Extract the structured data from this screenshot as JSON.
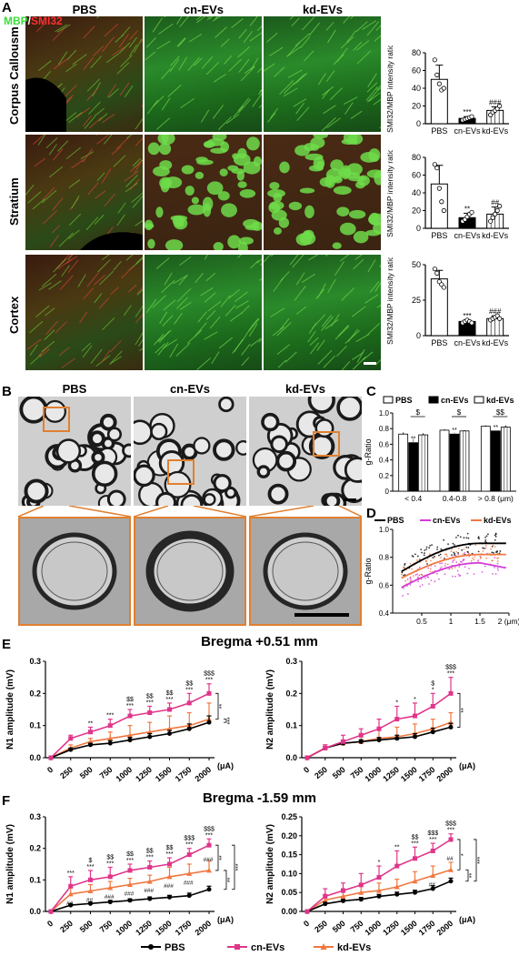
{
  "panels": {
    "A": "A",
    "B": "B",
    "C": "C",
    "D": "D",
    "E": "E",
    "F": "F"
  },
  "groups": {
    "pbs": "PBS",
    "cn": "cn-EVs",
    "kd": "kd-EVs"
  },
  "fluor_legend": {
    "mbp": "MBP",
    "sep": "/",
    "smi": "SMI32"
  },
  "regions": [
    "Corpus Callousm",
    "Stratium",
    "Cortex"
  ],
  "colors": {
    "pbs": "#000000",
    "cn": "#e0358a",
    "kd": "#f07840",
    "kd_line_c": "#f0a04a",
    "cn_d": "#d43cd8",
    "green": "#3cbf3c",
    "red": "#d02020"
  },
  "chart_data": [
    {
      "type": "bar",
      "id": "A1",
      "categories": [
        "PBS",
        "cn-EVs",
        "kd-EVs"
      ],
      "values": [
        50,
        6,
        15
      ],
      "errors": [
        16,
        2,
        4
      ],
      "points": [
        [
          72,
          55,
          45,
          38,
          40
        ],
        [
          4,
          5,
          6,
          7,
          8
        ],
        [
          10,
          13,
          15,
          17,
          20
        ]
      ],
      "ylabel": "SMI32/MBP intensity ratio",
      "ylim": [
        0,
        80
      ],
      "yticks": [
        0,
        20,
        40,
        60,
        80
      ],
      "sig": [
        [
          "",
          ""
        ],
        [
          "***",
          ""
        ],
        [
          "",
          "###"
        ]
      ]
    },
    {
      "type": "bar",
      "id": "A2",
      "categories": [
        "PBS",
        "cn-EVs",
        "kd-EVs"
      ],
      "values": [
        50,
        12,
        16
      ],
      "errors": [
        21,
        5,
        8
      ],
      "points": [
        [
          72,
          68,
          45,
          30,
          20
        ],
        [
          8,
          10,
          13,
          16,
          18
        ],
        [
          8,
          12,
          16,
          20,
          25
        ]
      ],
      "ylabel": "SMI32/MBP intensity ratio",
      "ylim": [
        0,
        80
      ],
      "yticks": [
        0,
        20,
        40,
        60,
        80
      ],
      "sig": [
        [
          "",
          ""
        ],
        [
          "**",
          ""
        ],
        [
          "",
          "##"
        ]
      ]
    },
    {
      "type": "bar",
      "id": "A3",
      "categories": [
        "PBS",
        "cn-EVs",
        "kd-EVs"
      ],
      "values": [
        40,
        10,
        12
      ],
      "errors": [
        6,
        1,
        2
      ],
      "points": [
        [
          47,
          44,
          38,
          36,
          34
        ],
        [
          9,
          10,
          11,
          10,
          9
        ],
        [
          11,
          12,
          13,
          14,
          12
        ]
      ],
      "ylabel": "SMI32/MBP intensity ratio",
      "ylim": [
        0,
        50
      ],
      "yticks": [
        0,
        25,
        50
      ],
      "sig": [
        [
          "",
          ""
        ],
        [
          "***",
          ""
        ],
        [
          "",
          "###"
        ]
      ]
    },
    {
      "type": "bar",
      "id": "C",
      "categories": [
        "< 0.4",
        "0.4-0.8",
        "> 0.8 (μm)"
      ],
      "series": [
        {
          "name": "PBS",
          "values": [
            0.73,
            0.78,
            0.83
          ]
        },
        {
          "name": "cn-EVs",
          "values": [
            0.62,
            0.73,
            0.77
          ]
        },
        {
          "name": "kd-EVs",
          "values": [
            0.72,
            0.77,
            0.82
          ]
        }
      ],
      "errors": [
        [
          0.02,
          0.05,
          0.02
        ],
        [
          0.01,
          0.02,
          0.01
        ],
        [
          0.01,
          0.01,
          0.02
        ]
      ],
      "ylabel": "g-Ratio",
      "ylim": [
        0,
        1.0
      ],
      "yticks": [
        0,
        0.2,
        0.4,
        0.6,
        0.8,
        1.0
      ],
      "sig_cn": [
        "**",
        "**",
        "**"
      ],
      "sig_top": [
        "$",
        "$",
        "$$"
      ]
    },
    {
      "type": "scatter",
      "id": "D",
      "series": [
        {
          "name": "PBS"
        },
        {
          "name": "cn-EVs"
        },
        {
          "name": "kd-EVs"
        }
      ],
      "ylabel": "g-Ratio",
      "xlim": [
        0,
        2
      ],
      "ylim": [
        0.4,
        1.0
      ],
      "xticks": [
        0.5,
        1,
        1.5,
        2
      ],
      "xtick_labels": [
        "0.5",
        "1",
        "1.5",
        "2 (μm)"
      ],
      "yticks": [
        0.4,
        0.6,
        0.8,
        1.0
      ],
      "fits": {
        "PBS": [
          0.66,
          0.9
        ],
        "cn-EVs": [
          0.55,
          0.76
        ],
        "kd-EVs": [
          0.62,
          0.82
        ]
      }
    },
    {
      "type": "line",
      "id": "E1",
      "title": "Bregma +0.51 mm",
      "x": [
        "0",
        "250",
        "500",
        "750",
        "1000",
        "1250",
        "1500",
        "1750",
        "2000"
      ],
      "x_unit": "(μA)",
      "series": [
        {
          "name": "PBS",
          "values": [
            0,
            0.025,
            0.04,
            0.045,
            0.055,
            0.065,
            0.075,
            0.09,
            0.11
          ],
          "errors": [
            0,
            0.005,
            0.005,
            0.008,
            0.008,
            0.01,
            0.01,
            0.015,
            0.02
          ]
        },
        {
          "name": "cn-EVs",
          "values": [
            0,
            0.06,
            0.08,
            0.1,
            0.13,
            0.14,
            0.15,
            0.17,
            0.2
          ],
          "errors": [
            0,
            0.01,
            0.015,
            0.02,
            0.02,
            0.02,
            0.02,
            0.03,
            0.03
          ]
        },
        {
          "name": "kd-EVs",
          "values": [
            0,
            0.03,
            0.05,
            0.06,
            0.07,
            0.08,
            0.09,
            0.1,
            0.12
          ],
          "errors": [
            0,
            0.01,
            0.01,
            0.02,
            0.03,
            0.03,
            0.04,
            0.04,
            0.05
          ]
        }
      ],
      "sig": [
        [
          "",
          ""
        ],
        [
          "",
          ""
        ],
        [
          "",
          "**"
        ],
        [
          "",
          "***"
        ],
        [
          "$$",
          "***"
        ],
        [
          "$$",
          "***"
        ],
        [
          "$$",
          "***"
        ],
        [
          "$$",
          "***"
        ],
        [
          "$$$",
          "***"
        ]
      ],
      "bracket": [
        "**",
        "***"
      ],
      "ylabel": "N1 amplitude (mV)",
      "ylim": [
        0,
        0.3
      ],
      "yticks": [
        0,
        0.1,
        0.2,
        0.3
      ]
    },
    {
      "type": "line",
      "id": "E2",
      "x": [
        "0",
        "250",
        "500",
        "750",
        "1000",
        "1250",
        "1500",
        "1750",
        "2000"
      ],
      "x_unit": "(μA)",
      "series": [
        {
          "name": "PBS",
          "values": [
            0,
            0.03,
            0.045,
            0.05,
            0.055,
            0.06,
            0.065,
            0.08,
            0.095
          ],
          "errors": [
            0,
            0.005,
            0.005,
            0.006,
            0.008,
            0.01,
            0.01,
            0.012,
            0.012
          ]
        },
        {
          "name": "cn-EVs",
          "values": [
            0,
            0.03,
            0.05,
            0.07,
            0.09,
            0.12,
            0.13,
            0.16,
            0.2
          ],
          "errors": [
            0,
            0.01,
            0.02,
            0.02,
            0.03,
            0.04,
            0.04,
            0.04,
            0.05
          ]
        },
        {
          "name": "kd-EVs",
          "values": [
            0,
            0.03,
            0.045,
            0.05,
            0.06,
            0.065,
            0.075,
            0.09,
            0.11
          ],
          "errors": [
            0,
            0.01,
            0.01,
            0.02,
            0.03,
            0.03,
            0.03,
            0.03,
            0.03
          ]
        }
      ],
      "sig": [
        [
          "",
          ""
        ],
        [
          "",
          ""
        ],
        [
          "",
          ""
        ],
        [
          "",
          ""
        ],
        [
          "",
          ""
        ],
        [
          "",
          "*"
        ],
        [
          "",
          "*"
        ],
        [
          "$",
          "*"
        ],
        [
          "$$$",
          "***"
        ]
      ],
      "bracket": [
        "**"
      ],
      "ylabel": "N2 amplitude (mV)",
      "ylim": [
        0,
        0.3
      ],
      "yticks": [
        0,
        0.1,
        0.2,
        0.3
      ]
    },
    {
      "type": "line",
      "id": "F1",
      "title": "Bregma -1.59 mm",
      "x": [
        "0",
        "250",
        "500",
        "750",
        "1000",
        "1250",
        "1500",
        "1750",
        "2000"
      ],
      "x_unit": "(μA)",
      "series": [
        {
          "name": "PBS",
          "values": [
            0,
            0.02,
            0.025,
            0.03,
            0.035,
            0.04,
            0.045,
            0.05,
            0.07
          ],
          "errors": [
            0,
            0.004,
            0.004,
            0.005,
            0.005,
            0.006,
            0.006,
            0.008,
            0.01
          ]
        },
        {
          "name": "cn-EVs",
          "values": [
            0,
            0.08,
            0.1,
            0.11,
            0.13,
            0.14,
            0.15,
            0.18,
            0.21
          ],
          "errors": [
            0,
            0.03,
            0.03,
            0.03,
            0.02,
            0.02,
            0.02,
            0.02,
            0.02
          ]
        },
        {
          "name": "kd-EVs",
          "values": [
            0,
            0.055,
            0.065,
            0.075,
            0.085,
            0.095,
            0.11,
            0.12,
            0.13
          ],
          "errors": [
            0,
            0.02,
            0.02,
            0.02,
            0.02,
            0.02,
            0.03,
            0.03,
            0.03
          ]
        }
      ],
      "sig": [
        [
          "",
          ""
        ],
        [
          "",
          "***"
        ],
        [
          "$",
          "***"
        ],
        [
          "$$",
          "***"
        ],
        [
          "$$",
          "***"
        ],
        [
          "$$",
          "***"
        ],
        [
          "$$",
          "***"
        ],
        [
          "$$$",
          "***"
        ],
        [
          "$$$",
          "***"
        ]
      ],
      "sig_kd": [
        "",
        "##",
        "##",
        "###",
        "###",
        "###",
        "###",
        "###",
        "###"
      ],
      "bracket": [
        "**",
        "**",
        "***"
      ],
      "ylabel": "N1 amplitude (mV)",
      "ylim": [
        0,
        0.3
      ],
      "yticks": [
        0,
        0.1,
        0.2,
        0.3
      ]
    },
    {
      "type": "line",
      "id": "F2",
      "x": [
        "0",
        "250",
        "500",
        "750",
        "1000",
        "1250",
        "1500",
        "1750",
        "2000"
      ],
      "x_unit": "(μA)",
      "series": [
        {
          "name": "PBS",
          "values": [
            0,
            0.02,
            0.028,
            0.032,
            0.04,
            0.045,
            0.05,
            0.06,
            0.08
          ],
          "errors": [
            0,
            0.004,
            0.004,
            0.005,
            0.005,
            0.006,
            0.006,
            0.008,
            0.008
          ]
        },
        {
          "name": "cn-EVs",
          "values": [
            0,
            0.04,
            0.055,
            0.07,
            0.09,
            0.12,
            0.14,
            0.16,
            0.19
          ],
          "errors": [
            0,
            0.02,
            0.02,
            0.03,
            0.03,
            0.04,
            0.03,
            0.02,
            0.015
          ]
        },
        {
          "name": "kd-EVs",
          "values": [
            0,
            0.03,
            0.04,
            0.05,
            0.055,
            0.065,
            0.08,
            0.095,
            0.11
          ],
          "errors": [
            0,
            0.015,
            0.02,
            0.02,
            0.02,
            0.02,
            0.025,
            0.025,
            0.02
          ]
        }
      ],
      "sig": [
        [
          "",
          ""
        ],
        [
          "",
          ""
        ],
        [
          "",
          ""
        ],
        [
          "",
          ""
        ],
        [
          "",
          "*"
        ],
        [
          "",
          "**"
        ],
        [
          "$$",
          "***"
        ],
        [
          "$$$",
          "***"
        ],
        [
          "$$$",
          "***"
        ]
      ],
      "sig_kd": [
        "",
        "",
        "",
        "",
        "",
        "",
        "",
        "##",
        "##"
      ],
      "bracket": [
        "*",
        "**",
        "***"
      ],
      "ylabel": "N2 amplitude (mV)",
      "ylim": [
        0,
        0.25
      ],
      "yticks": [
        0,
        0.05,
        0.1,
        0.15,
        0.2,
        0.25
      ]
    }
  ]
}
